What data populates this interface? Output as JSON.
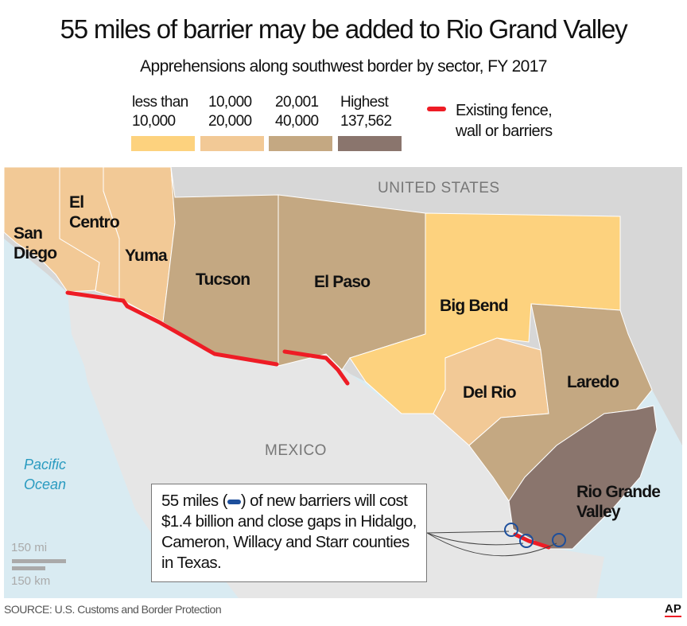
{
  "title": "55 miles of barrier may be added to Rio Grand Valley",
  "subtitle": "Apprehensions along southwest border by sector, FY 2017",
  "legend": {
    "bins": [
      {
        "line1": "less than",
        "line2": "10,000",
        "color": "#fdd27e"
      },
      {
        "line1": "10,000",
        "line2": "20,000",
        "color": "#f2c996"
      },
      {
        "line1": "20,001",
        "line2": "40,000",
        "color": "#c4a882"
      },
      {
        "line1": "Highest",
        "line2": "137,562",
        "color": "#8a756d"
      }
    ],
    "fence": {
      "line1": "Existing fence,",
      "line2": "wall or barriers",
      "color": "#ee1c25"
    }
  },
  "map": {
    "country_labels": {
      "us": "UNITED STATES",
      "mexico": "MEXICO"
    },
    "ocean": {
      "line1": "Pacific",
      "line2": "Ocean"
    },
    "sectors": [
      {
        "name1": "San",
        "name2": "Diego",
        "bin": "10,000-20,000"
      },
      {
        "name1": "El",
        "name2": "Centro",
        "bin": "10,000-20,000"
      },
      {
        "name1": "Yuma",
        "bin": "10,000-20,000"
      },
      {
        "name1": "Tucson",
        "bin": "20,001-40,000"
      },
      {
        "name1": "El Paso",
        "bin": "20,001-40,000"
      },
      {
        "name1": "Big Bend",
        "bin": "less than 10,000"
      },
      {
        "name1": "Del Rio",
        "bin": "10,000-20,000"
      },
      {
        "name1": "Laredo",
        "bin": "20,001-40,000"
      },
      {
        "name1": "Rio Grande",
        "name2": "Valley",
        "bin": "Highest 137,562"
      }
    ],
    "new_barrier_color": "#1d4f9c",
    "scale": {
      "mi": "150 mi",
      "km": "150 km"
    }
  },
  "callout": {
    "pre": "55 miles (",
    "post": ") of new barriers will",
    "rest": "cost $1.4 billion and close gaps in Hidalgo, Cameron, Willacy and Starr counties in Texas."
  },
  "source": "SOURCE: U.S. Customs and Border Protection",
  "credit": "AP"
}
